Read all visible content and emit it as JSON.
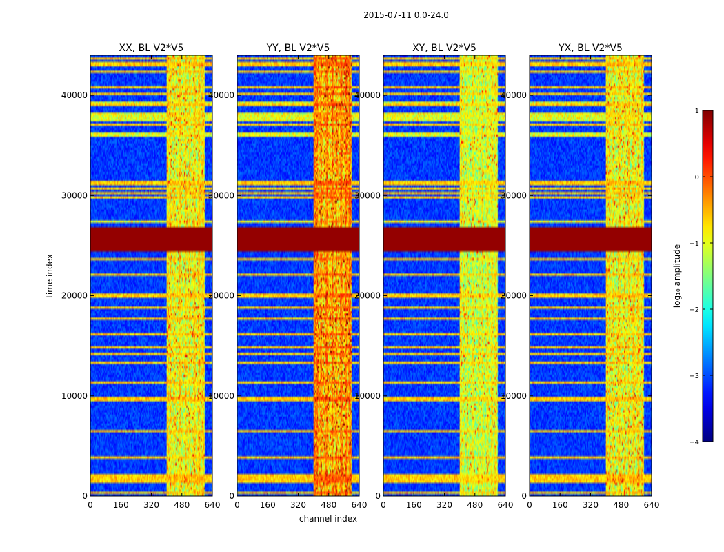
{
  "chart_data": {
    "type": "heatmap",
    "suptitle": "2015-07-11 0.0-24.0",
    "panels": [
      {
        "title": "XX, BL V2*V5",
        "intensity": 1.0
      },
      {
        "title": "YY, BL V2*V5",
        "intensity": 1.15
      },
      {
        "title": "XY, BL V2*V5",
        "intensity": 0.95
      },
      {
        "title": "YX, BL V2*V5",
        "intensity": 1.0
      }
    ],
    "xlabel": "channel index",
    "ylabel": "time index",
    "xlim": [
      0,
      640
    ],
    "ylim": [
      0,
      44000
    ],
    "xticks": [
      "0",
      "160",
      "320",
      "480",
      "640"
    ],
    "yticks": [
      "0",
      "10000",
      "20000",
      "30000",
      "40000"
    ],
    "colorbar": {
      "label": "log₁₀ amplitude",
      "range": [
        -4,
        1
      ],
      "ticks": [
        "1",
        "0",
        "−1",
        "−2",
        "−3",
        "−4"
      ],
      "colormap": "jet"
    },
    "flagged_time_ranges": [
      [
        24500,
        26800
      ]
    ],
    "bright_time_bands": [
      [
        37500,
        38300
      ],
      [
        39000,
        39400
      ],
      [
        35800,
        36200
      ],
      [
        27200,
        27600
      ]
    ],
    "signal_channel_range": [
      400,
      600
    ]
  },
  "colors": {
    "background": "#ffffff",
    "axis": "#000000",
    "flagged": "#7f0000",
    "low": "#00008f"
  }
}
